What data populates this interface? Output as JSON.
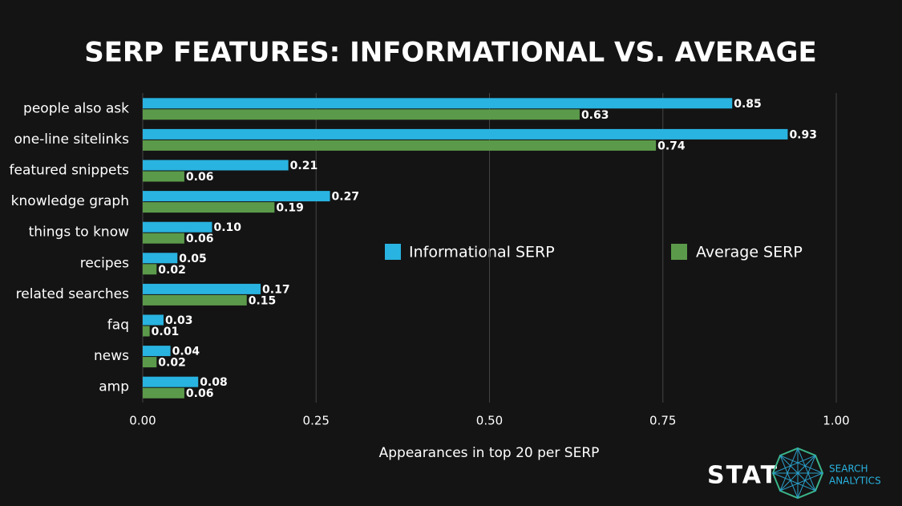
{
  "chart_data": {
    "type": "hbar",
    "title": "SERP FEATURES: INFORMATIONAL VS. AVERAGE",
    "categories": [
      "people also ask",
      "one-line sitelinks",
      "featured snippets",
      "knowledge graph",
      "things to know",
      "recipes",
      "related searches",
      "faq",
      "news",
      "amp"
    ],
    "series": [
      {
        "name": "Informational SERP",
        "color": "#29b3e0",
        "values": [
          0.85,
          0.93,
          0.21,
          0.27,
          0.1,
          0.05,
          0.17,
          0.03,
          0.04,
          0.08
        ],
        "value_labels": [
          "0.85",
          "0.93",
          "0.21",
          "0.27",
          "0.10",
          "0.05",
          "0.17",
          "0.03",
          "0.04",
          "0.08"
        ]
      },
      {
        "name": "Average SERP",
        "color": "#5b9a4a",
        "values": [
          0.63,
          0.74,
          0.06,
          0.19,
          0.06,
          0.02,
          0.15,
          0.01,
          0.02,
          0.06
        ],
        "value_labels": [
          "0.63",
          "0.74",
          "0.06",
          "0.19",
          "0.06",
          "0.02",
          "0.15",
          "0.01",
          "0.02",
          "0.06"
        ]
      }
    ],
    "xlabel": "Appearances in top 20 per SERP",
    "xlim": [
      0,
      1
    ],
    "xticks": [
      {
        "value": 0,
        "label": "0.00"
      },
      0.25,
      {
        "value": 0.5,
        "label": "0.50"
      },
      0.75,
      {
        "value": 1,
        "label": "1.00"
      }
    ],
    "grid": true
  },
  "logo": {
    "text": "STAT",
    "subtext_1": "SEARCH",
    "subtext_2": "ANALYTICS"
  }
}
